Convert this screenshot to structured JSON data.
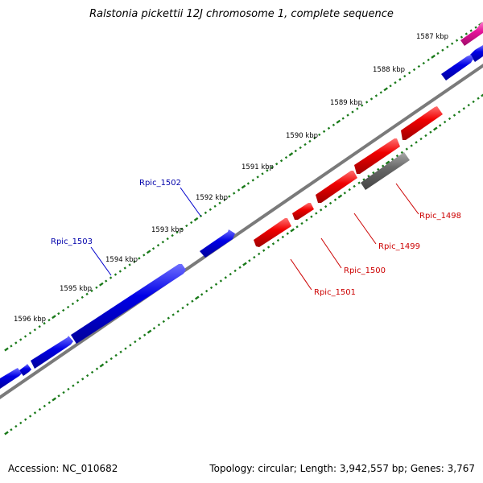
{
  "title": "Ralstonia pickettii 12J chromosome 1, complete sequence",
  "footer": {
    "accession": "Accession: NC_010682",
    "stats": "Topology: circular; Length: 3,942,557 bp; Genes: 3,767"
  },
  "colors": {
    "forward_gene": "#0000dd",
    "reverse_gene": "#ee0000",
    "pseudo_gene": "#666666",
    "rna_gene": "#e6149a",
    "backbone": "#888888",
    "tick": "#1a7a1a",
    "forward_label": "#0000aa",
    "reverse_label": "#cc0000"
  },
  "scale_labels": [
    "1587 kbp",
    "1588 kbp",
    "1589 kbp",
    "1590 kbp",
    "1591 kbp",
    "1592 kbp",
    "1593 kbp",
    "1594 kbp",
    "1595 kbp",
    "1596 kbp"
  ],
  "gene_labels": {
    "forward": [
      "Rpic_1502",
      "Rpic_1503"
    ],
    "reverse": [
      "Rpic_1498",
      "Rpic_1499",
      "Rpic_1500",
      "Rpic_1501"
    ]
  }
}
